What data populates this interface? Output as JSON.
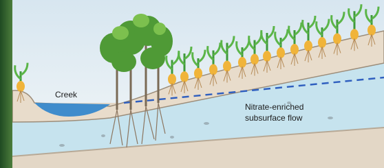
{
  "labels": {
    "creek": "Creek",
    "flow": [
      "Nitrate-enriched",
      "subsurface flow"
    ]
  }
}
